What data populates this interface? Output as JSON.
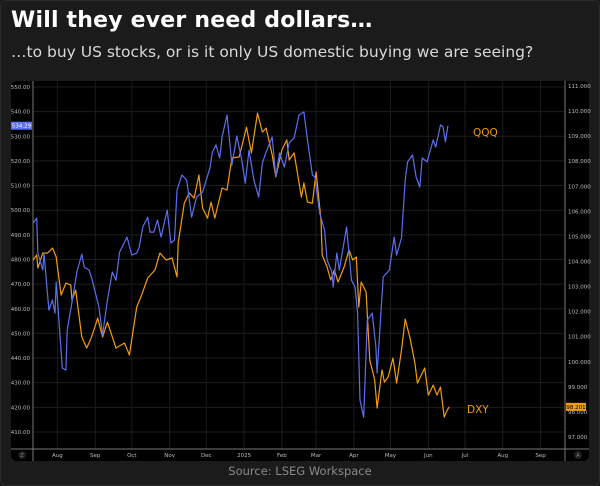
{
  "title": "Will they ever need dollars…",
  "subtitle": "…to buy US stocks, or is it only US domestic buying we are seeing?",
  "source": "Source: LSEG Workspace",
  "colors": {
    "qqq": "#5b6ff0",
    "dxy": "#f39c12",
    "background": "#1b1b1b",
    "panel": "#000000"
  },
  "chart_data": {
    "type": "line",
    "title": "Will they ever need dollars…",
    "xlabel": "",
    "x_units": "days since 2024-08-01",
    "xlim": [
      -20,
      416
    ],
    "x_ticks": [
      {
        "label": "Aug",
        "x": 0
      },
      {
        "label": "Sep",
        "x": 31
      },
      {
        "label": "Oct",
        "x": 61
      },
      {
        "label": "Nov",
        "x": 92
      },
      {
        "label": "Dec",
        "x": 122
      },
      {
        "label": "2025",
        "x": 153
      },
      {
        "label": "Feb",
        "x": 184
      },
      {
        "label": "Mar",
        "x": 212
      },
      {
        "label": "Apr",
        "x": 243
      },
      {
        "label": "May",
        "x": 273
      },
      {
        "label": "Jun",
        "x": 304
      },
      {
        "label": "Jul",
        "x": 334
      },
      {
        "label": "Aug",
        "x": 365
      },
      {
        "label": "Sep",
        "x": 396
      }
    ],
    "y_left": {
      "lim": [
        407,
        552
      ],
      "ticks": [
        "550.00",
        "540.00",
        "530.00",
        "520.00",
        "510.00",
        "500.00",
        "490.00",
        "480.00",
        "470.00",
        "460.00",
        "450.00",
        "440.00",
        "430.00",
        "420.00",
        "410.00"
      ]
    },
    "y_right": {
      "lim": [
        96.8,
        111.1
      ],
      "ticks": [
        "111.000",
        "110.000",
        "109.000",
        "108.000",
        "107.000",
        "106.000",
        "105.000",
        "104.000",
        "103.000",
        "102.000",
        "101.000",
        "100.000",
        "99.000",
        "98.000",
        "97.000"
      ]
    },
    "grid": true,
    "corner_left": "Z",
    "corner_right": "A",
    "series": [
      {
        "name": "QQQ",
        "axis": "left",
        "label": "QQQ",
        "last_value": "534.29",
        "points": [
          [
            -20,
            494.8
          ],
          [
            -17,
            496.8
          ],
          [
            -16,
            482.6
          ],
          [
            -12,
            475.7
          ],
          [
            -11,
            482.6
          ],
          [
            -7,
            459.5
          ],
          [
            -4,
            463.5
          ],
          [
            -2,
            458.2
          ],
          [
            -1,
            470.8
          ],
          [
            4,
            435.9
          ],
          [
            7,
            435.1
          ],
          [
            8,
            451.3
          ],
          [
            12,
            462.7
          ],
          [
            16,
            474.9
          ],
          [
            20,
            482.2
          ],
          [
            22,
            476.9
          ],
          [
            26,
            475.7
          ],
          [
            29,
            470.8
          ],
          [
            34,
            460.7
          ],
          [
            37,
            449.3
          ],
          [
            41,
            463.5
          ],
          [
            45,
            474.9
          ],
          [
            48,
            471.6
          ],
          [
            51,
            483
          ],
          [
            57,
            489.1
          ],
          [
            61,
            481.8
          ],
          [
            65,
            482.6
          ],
          [
            67,
            485
          ],
          [
            70,
            493.2
          ],
          [
            74,
            497.2
          ],
          [
            76,
            491.1
          ],
          [
            79,
            491.1
          ],
          [
            82,
            496
          ],
          [
            85,
            489.1
          ],
          [
            90,
            500.1
          ],
          [
            93,
            486.7
          ],
          [
            96,
            487.9
          ],
          [
            98,
            508.2
          ],
          [
            102,
            514.3
          ],
          [
            106,
            512.2
          ],
          [
            110,
            497.2
          ],
          [
            114,
            505.3
          ],
          [
            119,
            507.4
          ],
          [
            125,
            517.1
          ],
          [
            127,
            523.6
          ],
          [
            130,
            526.5
          ],
          [
            133,
            521.2
          ],
          [
            135,
            529.7
          ],
          [
            139,
            538.6
          ],
          [
            140,
            533.8
          ],
          [
            143,
            518.3
          ],
          [
            147,
            530.1
          ],
          [
            151,
            520.4
          ],
          [
            154,
            511
          ],
          [
            157,
            524.4
          ],
          [
            161,
            512.2
          ],
          [
            165,
            505.3
          ],
          [
            168,
            519.1
          ],
          [
            171,
            523.6
          ],
          [
            176,
            529.7
          ],
          [
            179,
            513.5
          ],
          [
            182,
            523.2
          ],
          [
            186,
            517.5
          ],
          [
            190,
            527.3
          ],
          [
            194,
            529.3
          ],
          [
            198,
            538.6
          ],
          [
            202,
            539.9
          ],
          [
            205,
            528.5
          ],
          [
            209,
            514.3
          ],
          [
            211,
            513.5
          ],
          [
            215,
            498.8
          ],
          [
            219,
            491.9
          ],
          [
            221,
            479.8
          ],
          [
            225,
            474.9
          ],
          [
            226,
            468.8
          ],
          [
            229,
            482.6
          ],
          [
            231,
            475.7
          ],
          [
            237,
            493.2
          ],
          [
            241,
            471.6
          ],
          [
            244,
            468.8
          ],
          [
            246,
            458.2
          ],
          [
            248,
            422.9
          ],
          [
            251,
            416
          ],
          [
            254,
            455.4
          ],
          [
            258,
            458.2
          ],
          [
            261,
            444.4
          ],
          [
            262,
            433.9
          ],
          [
            267,
            472.9
          ],
          [
            272,
            475.7
          ],
          [
            276,
            489.1
          ],
          [
            278,
            481.8
          ],
          [
            282,
            488.7
          ],
          [
            285,
            512.2
          ],
          [
            287,
            519.6
          ],
          [
            291,
            522.4
          ],
          [
            294,
            513.5
          ],
          [
            297,
            509.4
          ],
          [
            299,
            521.2
          ],
          [
            303,
            519.6
          ],
          [
            308,
            528.5
          ],
          [
            310,
            525.6
          ],
          [
            314,
            534.6
          ],
          [
            316,
            533.8
          ],
          [
            318,
            527.7
          ],
          [
            320,
            534.3
          ]
        ]
      },
      {
        "name": "DXY",
        "axis": "right",
        "label": "DXY",
        "last_value": "98.201",
        "points": [
          [
            -20,
            104.06
          ],
          [
            -17,
            104.26
          ],
          [
            -16,
            103.74
          ],
          [
            -12,
            104.34
          ],
          [
            -8,
            104.34
          ],
          [
            -4,
            104.54
          ],
          [
            -1,
            104.18
          ],
          [
            3,
            102.66
          ],
          [
            7,
            103.14
          ],
          [
            11,
            103.06
          ],
          [
            12,
            102.46
          ],
          [
            15,
            102.86
          ],
          [
            20,
            100.99
          ],
          [
            24,
            100.55
          ],
          [
            28,
            100.99
          ],
          [
            33,
            101.74
          ],
          [
            37,
            100.99
          ],
          [
            41,
            101.58
          ],
          [
            48,
            100.55
          ],
          [
            55,
            100.75
          ],
          [
            59,
            100.27
          ],
          [
            65,
            102.18
          ],
          [
            69,
            102.66
          ],
          [
            74,
            103.34
          ],
          [
            80,
            103.66
          ],
          [
            84,
            104.34
          ],
          [
            89,
            104.06
          ],
          [
            94,
            104.14
          ],
          [
            98,
            103.38
          ],
          [
            99,
            104.74
          ],
          [
            104,
            106.33
          ],
          [
            108,
            106.73
          ],
          [
            112,
            106.53
          ],
          [
            116,
            107.45
          ],
          [
            119,
            106.13
          ],
          [
            123,
            105.73
          ],
          [
            126,
            106.37
          ],
          [
            129,
            105.73
          ],
          [
            135,
            106.93
          ],
          [
            139,
            106.85
          ],
          [
            143,
            108.13
          ],
          [
            149,
            108.17
          ],
          [
            155,
            109.36
          ],
          [
            159,
            108.33
          ],
          [
            164,
            109.92
          ],
          [
            168,
            109.16
          ],
          [
            171,
            109.32
          ],
          [
            176,
            108.25
          ],
          [
            179,
            107.37
          ],
          [
            184,
            108.45
          ],
          [
            188,
            108.85
          ],
          [
            190,
            108.05
          ],
          [
            194,
            108.33
          ],
          [
            196,
            107.73
          ],
          [
            200,
            106.57
          ],
          [
            202,
            107.13
          ],
          [
            205,
            106.37
          ],
          [
            209,
            106.33
          ],
          [
            212,
            107.57
          ],
          [
            216,
            105.65
          ],
          [
            217,
            104.26
          ],
          [
            221,
            103.78
          ],
          [
            224,
            103.26
          ],
          [
            227,
            103.66
          ],
          [
            230,
            103.18
          ],
          [
            235,
            103.78
          ],
          [
            239,
            104.46
          ],
          [
            242,
            104.06
          ],
          [
            245,
            104.18
          ],
          [
            247,
            102.18
          ],
          [
            249,
            103.18
          ],
          [
            253,
            102.78
          ],
          [
            256,
            100.07
          ],
          [
            260,
            99.27
          ],
          [
            262,
            98.15
          ],
          [
            266,
            99.67
          ],
          [
            268,
            99.19
          ],
          [
            271,
            99.39
          ],
          [
            275,
            100.15
          ],
          [
            278,
            99.15
          ],
          [
            282,
            100.47
          ],
          [
            285,
            101.7
          ],
          [
            289,
            100.95
          ],
          [
            293,
            99.95
          ],
          [
            295,
            99.15
          ],
          [
            301,
            99.75
          ],
          [
            304,
            98.67
          ],
          [
            308,
            99.07
          ],
          [
            311,
            98.67
          ],
          [
            314,
            98.99
          ],
          [
            317,
            97.79
          ],
          [
            319,
            98.03
          ],
          [
            321,
            98.2
          ]
        ]
      }
    ]
  }
}
